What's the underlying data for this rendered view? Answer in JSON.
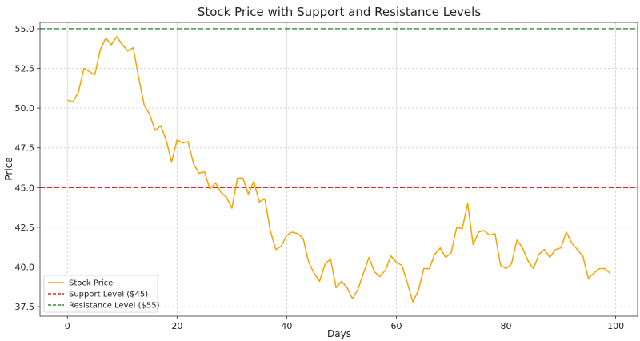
{
  "chart_data": {
    "type": "line",
    "title": "Stock Price with Support and Resistance Levels",
    "xlabel": "Days",
    "ylabel": "Price",
    "xlim": [
      -5,
      104
    ],
    "ylim": [
      36.9,
      55.4
    ],
    "x_ticks": [
      0,
      20,
      40,
      60,
      80,
      100
    ],
    "y_ticks": [
      37.5,
      40.0,
      42.5,
      45.0,
      47.5,
      50.0,
      52.5,
      55.0
    ],
    "y_tick_labels": [
      "37.5",
      "40.0",
      "42.5",
      "45.0",
      "47.5",
      "50.0",
      "52.5",
      "55.0"
    ],
    "grid": true,
    "legend_position": "lower-left",
    "series": [
      {
        "name": "Stock Price",
        "color": "#f5a300",
        "x": [
          0,
          1,
          2,
          3,
          4,
          5,
          6,
          7,
          8,
          9,
          10,
          11,
          12,
          13,
          14,
          15,
          16,
          17,
          18,
          19,
          20,
          21,
          22,
          23,
          24,
          25,
          26,
          27,
          28,
          29,
          30,
          31,
          32,
          33,
          34,
          35,
          36,
          37,
          38,
          39,
          40,
          41,
          42,
          43,
          44,
          45,
          46,
          47,
          48,
          49,
          50,
          51,
          52,
          53,
          54,
          55,
          56,
          57,
          58,
          59,
          60,
          61,
          62,
          63,
          64,
          65,
          66,
          67,
          68,
          69,
          70,
          71,
          72,
          73,
          74,
          75,
          76,
          77,
          78,
          79,
          80,
          81,
          82,
          83,
          84,
          85,
          86,
          87,
          88,
          89,
          90,
          91,
          92,
          93,
          94,
          95,
          96,
          97,
          98,
          99
        ],
        "y": [
          50.5,
          50.4,
          51.0,
          52.5,
          52.3,
          52.1,
          53.7,
          54.4,
          54.0,
          54.5,
          54.0,
          53.6,
          53.8,
          51.9,
          50.2,
          49.6,
          48.6,
          48.9,
          48.0,
          46.6,
          48.0,
          47.8,
          47.9,
          46.5,
          45.9,
          46.0,
          44.9,
          45.3,
          44.7,
          44.4,
          43.7,
          45.6,
          45.6,
          44.6,
          45.4,
          44.1,
          44.3,
          42.3,
          41.1,
          41.3,
          42.0,
          42.2,
          42.1,
          41.8,
          40.3,
          39.6,
          39.1,
          40.2,
          40.5,
          38.7,
          39.1,
          38.7,
          38.0,
          38.6,
          39.6,
          40.6,
          39.7,
          39.4,
          39.8,
          40.7,
          40.3,
          40.1,
          39.0,
          37.8,
          38.5,
          39.9,
          39.9,
          40.8,
          41.2,
          40.6,
          40.9,
          42.5,
          42.4,
          44.0,
          41.4,
          42.2,
          42.3,
          42.0,
          42.1,
          40.1,
          39.9,
          40.2,
          41.7,
          41.2,
          40.4,
          39.9,
          40.8,
          41.1,
          40.6,
          41.1,
          41.2,
          42.2,
          41.5,
          41.1,
          40.7,
          39.3,
          39.6,
          39.9,
          39.9,
          39.6
        ]
      },
      {
        "name": "Support Level ($45)",
        "color": "#d62728",
        "dashed": true,
        "value": 45
      },
      {
        "name": "Resistance Level ($55)",
        "color": "#2e8b2e",
        "dashed": true,
        "value": 55
      }
    ]
  }
}
